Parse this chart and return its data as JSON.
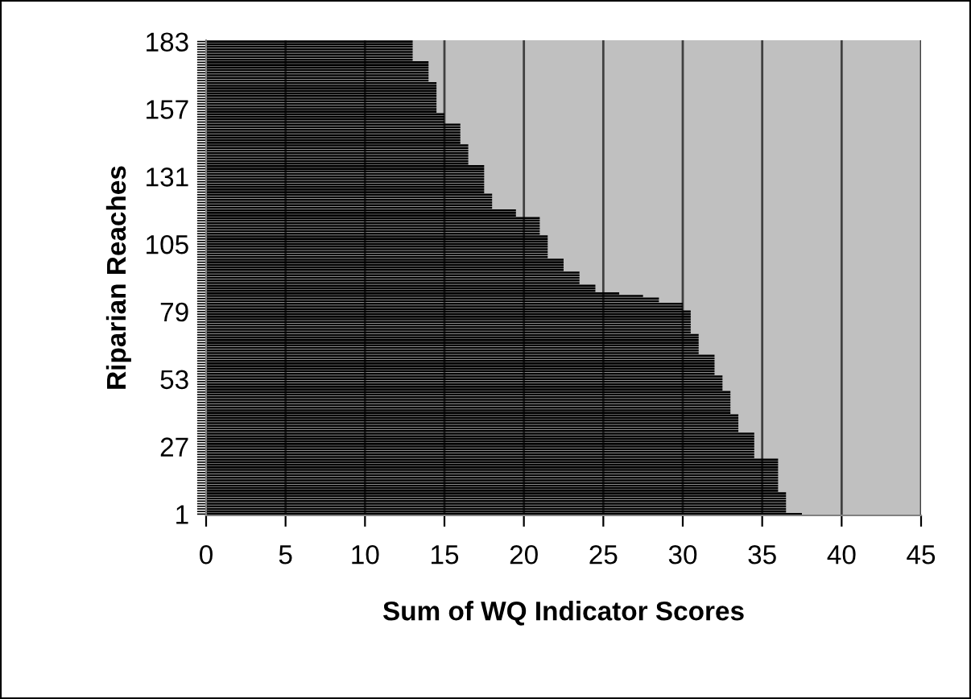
{
  "chart_data": {
    "type": "bar",
    "orientation": "horizontal",
    "xlabel": "Sum of WQ Indicator Scores",
    "ylabel": "Riparian Reaches",
    "categories": [
      "183",
      null,
      null,
      null,
      null,
      null,
      null,
      null,
      null,
      null,
      null,
      null,
      null,
      null,
      null,
      null,
      null,
      null,
      null,
      null,
      null,
      null,
      null,
      null,
      null,
      null,
      "157",
      null,
      null,
      null,
      null,
      null,
      null,
      null,
      null,
      null,
      null,
      null,
      null,
      null,
      null,
      null,
      null,
      null,
      null,
      null,
      null,
      null,
      null,
      null,
      null,
      null,
      "131",
      null,
      null,
      null,
      null,
      null,
      null,
      null,
      null,
      null,
      null,
      null,
      null,
      null,
      null,
      null,
      null,
      null,
      null,
      null,
      null,
      null,
      null,
      null,
      null,
      null,
      "105",
      null,
      null,
      null,
      null,
      null,
      null,
      null,
      null,
      null,
      null,
      null,
      null,
      null,
      null,
      null,
      null,
      null,
      null,
      null,
      null,
      null,
      null,
      null,
      null,
      null,
      "79",
      null,
      null,
      null,
      null,
      null,
      null,
      null,
      null,
      null,
      null,
      null,
      null,
      null,
      null,
      null,
      null,
      null,
      null,
      null,
      null,
      null,
      null,
      null,
      null,
      null,
      "53",
      null,
      null,
      null,
      null,
      null,
      null,
      null,
      null,
      null,
      null,
      null,
      null,
      null,
      null,
      null,
      null,
      null,
      null,
      null,
      null,
      null,
      null,
      null,
      null,
      null,
      "27",
      null,
      null,
      null,
      null,
      null,
      null,
      null,
      null,
      null,
      null,
      null,
      null,
      null,
      null,
      null,
      null,
      null,
      null,
      null,
      null,
      null,
      null,
      null,
      null,
      null,
      "1"
    ],
    "values": [
      13,
      13,
      13,
      13,
      13,
      13,
      13,
      13,
      14,
      14,
      14,
      14,
      14,
      14,
      14,
      14,
      14.5,
      14.5,
      14.5,
      14.5,
      14.5,
      14.5,
      14.5,
      14.5,
      14.5,
      14.5,
      14.5,
      14.5,
      15,
      15,
      15,
      15,
      16,
      16,
      16,
      16,
      16,
      16,
      16,
      16,
      16.5,
      16.5,
      16.5,
      16.5,
      16.5,
      16.5,
      16.5,
      16.5,
      17.5,
      17.5,
      17.5,
      17.5,
      17.5,
      17.5,
      17.5,
      17.5,
      17.5,
      17.5,
      17.5,
      18,
      18,
      18,
      18,
      18,
      18,
      19.5,
      19.5,
      19.5,
      21,
      21,
      21,
      21,
      21,
      21,
      21,
      21.5,
      21.5,
      21.5,
      21.5,
      21.5,
      21.5,
      21.5,
      21.5,
      21.5,
      22.5,
      22.5,
      22.5,
      22.5,
      22.5,
      23.5,
      23.5,
      23.5,
      23.5,
      23.5,
      24.5,
      24.5,
      24.5,
      26,
      27.5,
      28.5,
      28.5,
      30,
      30,
      30,
      30.5,
      30.5,
      30.5,
      30.5,
      30.5,
      30.5,
      30.5,
      30.5,
      30.5,
      31,
      31,
      31,
      31,
      31,
      31,
      31,
      31,
      32,
      32,
      32,
      32,
      32,
      32,
      32,
      32,
      32.5,
      32.5,
      32.5,
      32.5,
      32.5,
      32.5,
      33,
      33,
      33,
      33,
      33,
      33,
      33,
      33,
      33,
      33.5,
      33.5,
      33.5,
      33.5,
      33.5,
      33.5,
      33.5,
      34.5,
      34.5,
      34.5,
      34.5,
      34.5,
      34.5,
      34.5,
      34.5,
      34.5,
      34.5,
      36,
      36,
      36,
      36,
      36,
      36,
      36,
      36,
      36,
      36,
      36,
      36,
      36,
      36.5,
      36.5,
      36.5,
      36.5,
      36.5,
      36.5,
      36.5,
      36.5,
      37.5
    ],
    "color": "#000000",
    "xlim": [
      0,
      45
    ],
    "xticks": [
      0,
      5,
      10,
      15,
      20,
      25,
      30,
      35,
      40,
      45
    ],
    "bands": [
      {
        "axis": "x",
        "from": 0,
        "to": 45,
        "color": "#c0c0c0"
      }
    ],
    "grid": "x"
  }
}
